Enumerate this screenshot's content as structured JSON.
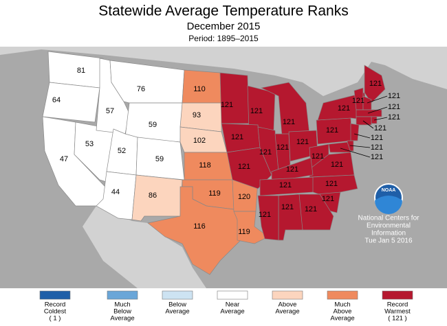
{
  "header": {
    "title": "Statewide Average Temperature Ranks",
    "subtitle": "December 2015",
    "period": "Period: 1895–2015"
  },
  "states": [
    {
      "value": 81,
      "color": "#ffffff"
    },
    {
      "value": 64,
      "color": "#ffffff"
    },
    {
      "value": 47,
      "color": "#ffffff"
    },
    {
      "value": 53,
      "color": "#ffffff"
    },
    {
      "value": 57,
      "color": "#ffffff"
    },
    {
      "value": 76,
      "color": "#ffffff"
    },
    {
      "value": 59,
      "color": "#ffffff"
    },
    {
      "value": 52,
      "color": "#ffffff"
    },
    {
      "value": 59,
      "color": "#ffffff"
    },
    {
      "value": 44,
      "color": "#ffffff"
    },
    {
      "value": 86,
      "color": "#fcd5be"
    },
    {
      "value": 110,
      "color": "#ef8a5e"
    },
    {
      "value": 93,
      "color": "#fcd5be"
    },
    {
      "value": 102,
      "color": "#fcd5be"
    },
    {
      "value": 118,
      "color": "#ef8a5e"
    },
    {
      "value": 119,
      "color": "#ef8a5e"
    },
    {
      "value": 116,
      "color": "#ef8a5e"
    },
    {
      "value": 120,
      "color": "#ef8a5e"
    },
    {
      "value": 119,
      "color": "#ef8a5e"
    },
    {
      "value": 121,
      "color": "#b5182f"
    },
    {
      "value": 121,
      "color": "#b5182f"
    },
    {
      "value": 121,
      "color": "#b5182f"
    },
    {
      "value": 121,
      "color": "#b5182f"
    },
    {
      "value": 121,
      "color": "#b5182f"
    },
    {
      "value": 121,
      "color": "#b5182f"
    },
    {
      "value": 121,
      "color": "#b5182f"
    },
    {
      "value": 121,
      "color": "#b5182f"
    },
    {
      "value": 121,
      "color": "#b5182f"
    },
    {
      "value": 121,
      "color": "#b5182f"
    },
    {
      "value": 121,
      "color": "#b5182f"
    },
    {
      "value": 121,
      "color": "#b5182f"
    },
    {
      "value": 121,
      "color": "#b5182f"
    },
    {
      "value": 121,
      "color": "#b5182f"
    },
    {
      "value": 121,
      "color": "#b5182f"
    },
    {
      "value": 121,
      "color": "#b5182f"
    },
    {
      "value": 121,
      "color": "#b5182f"
    },
    {
      "value": 121,
      "color": "#b5182f"
    },
    {
      "value": 121,
      "color": "#b5182f"
    },
    {
      "value": 121,
      "color": "#b5182f"
    },
    {
      "value": 121,
      "color": "#b5182f"
    },
    {
      "value": 121,
      "color": "#b5182f"
    },
    {
      "value": 121,
      "color": "#b5182f"
    },
    {
      "value": 121,
      "color": "#b5182f"
    },
    {
      "value": 121,
      "color": "#b5182f"
    },
    {
      "value": 121,
      "color": "#b5182f"
    },
    {
      "value": 121,
      "color": "#b5182f"
    },
    {
      "value": 121,
      "color": "#b5182f"
    }
  ],
  "legend": [
    {
      "label": [
        "Record",
        "Coldest",
        "( 1 )"
      ],
      "color": "#1f5fa8"
    },
    {
      "label": [
        "Much",
        "Below",
        "Average"
      ],
      "color": "#6aa6d8"
    },
    {
      "label": [
        "Below",
        "Average"
      ],
      "color": "#cde3f2"
    },
    {
      "label": [
        "Near",
        "Average"
      ],
      "color": "#ffffff"
    },
    {
      "label": [
        "Above",
        "Average"
      ],
      "color": "#fcd5be"
    },
    {
      "label": [
        "Much",
        "Above",
        "Average"
      ],
      "color": "#ef8a5e"
    },
    {
      "label": [
        "Record",
        "Warmest",
        "( 121 )"
      ],
      "color": "#b5182f"
    }
  ],
  "logo": "NOAA",
  "credit": [
    "National Centers for",
    "Environmental",
    "Information",
    "Tue Jan  5 2016"
  ]
}
